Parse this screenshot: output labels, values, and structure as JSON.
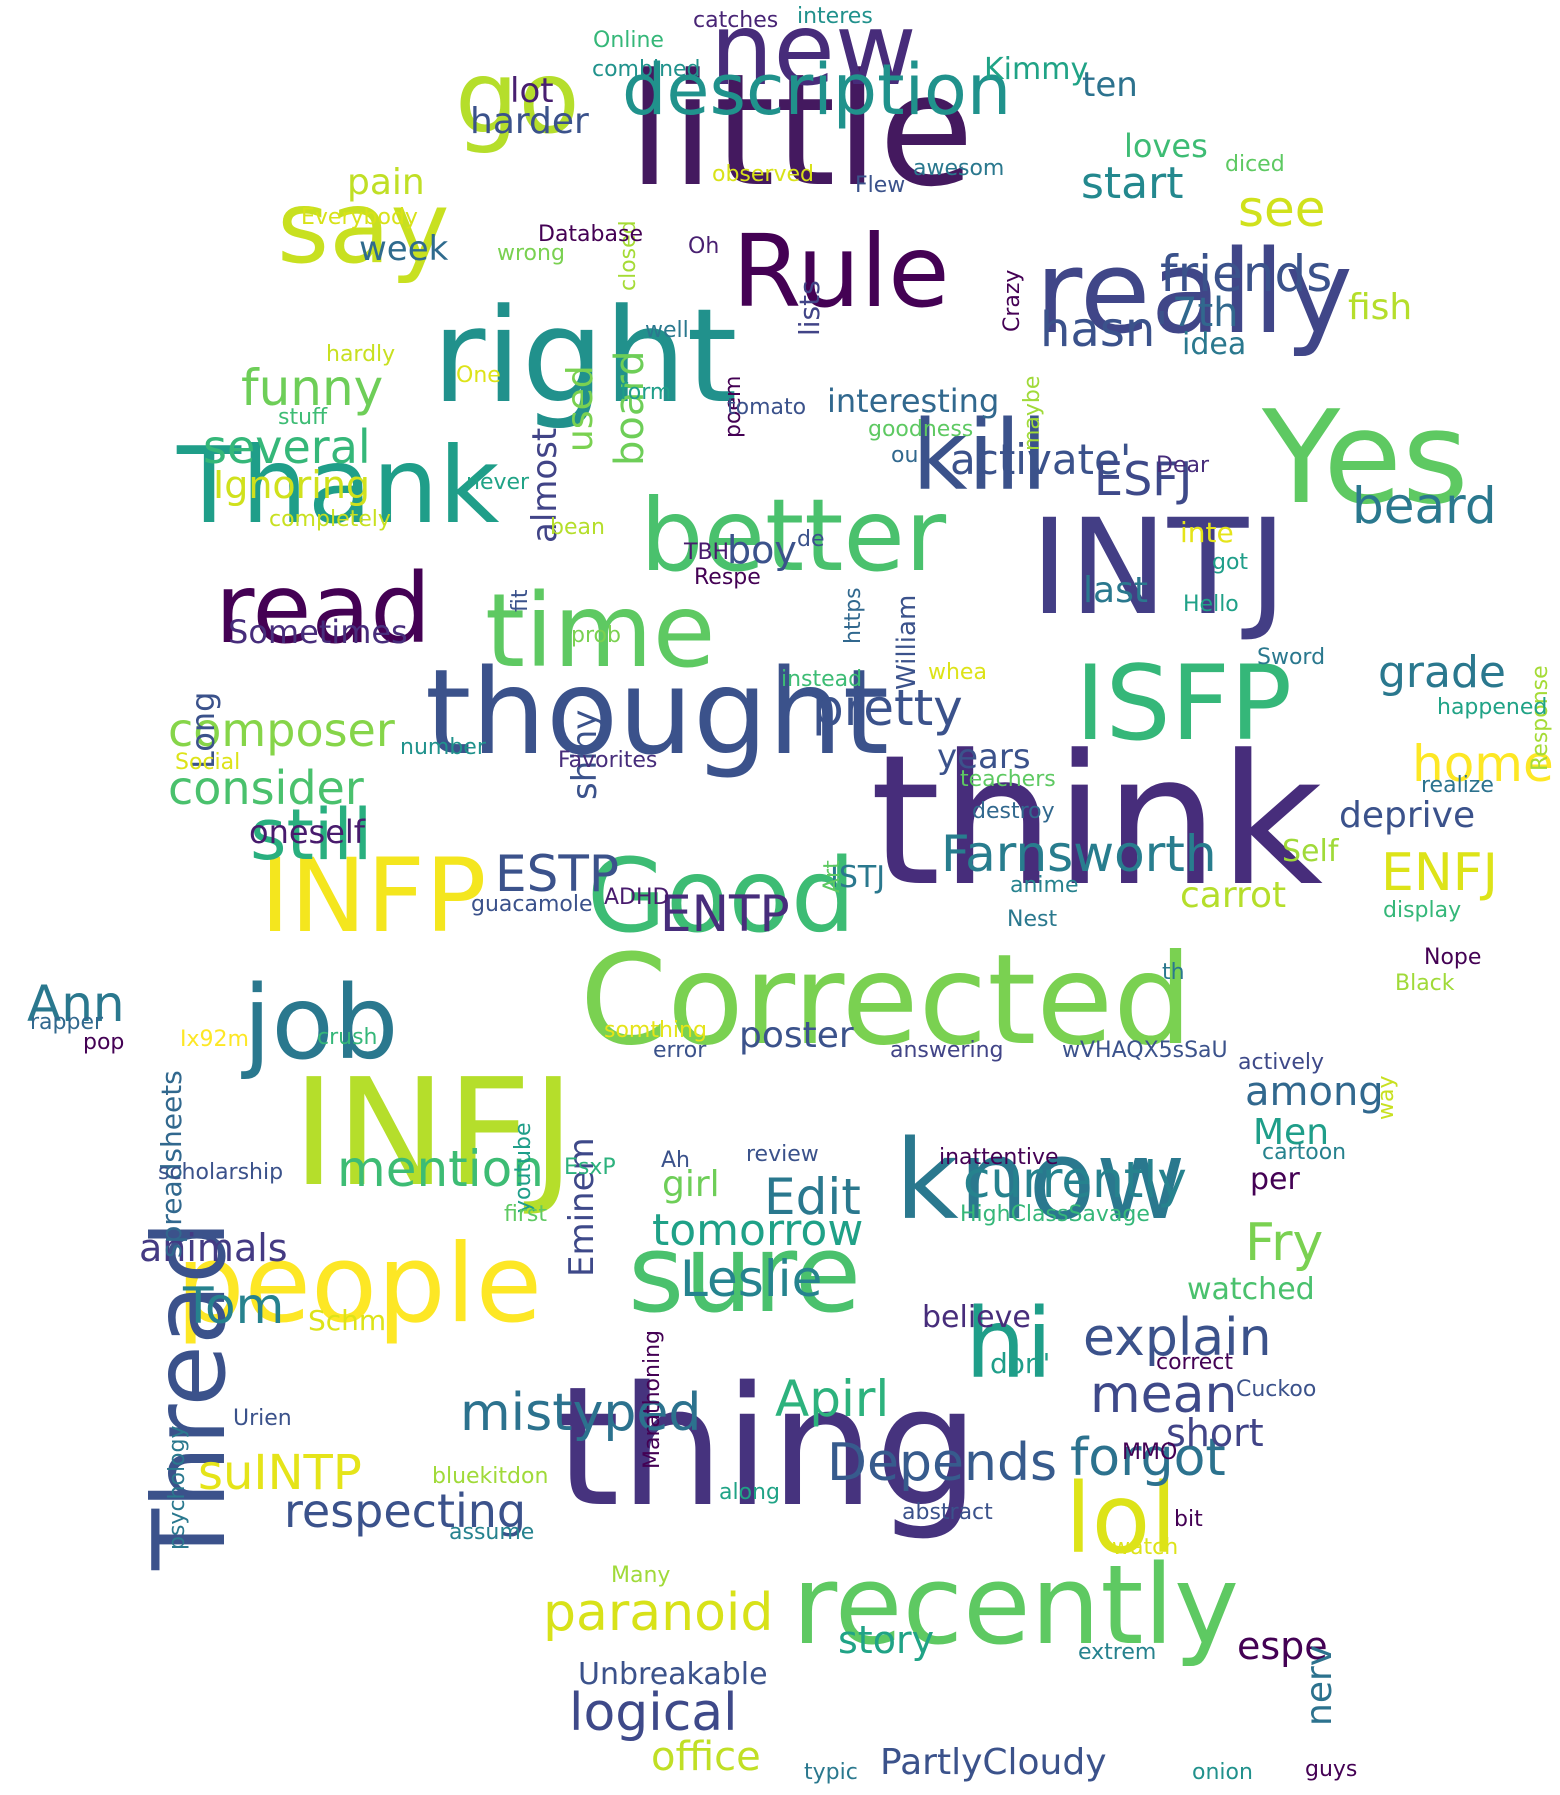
{
  "words": [
    {
      "text": "think",
      "color": "#472d7b"
    },
    {
      "text": "thing",
      "color": "#46337e"
    },
    {
      "text": "little",
      "color": "#44195f"
    },
    {
      "text": "INFJ",
      "color": "#b5de2b"
    },
    {
      "text": "INTJ",
      "color": "#433e85"
    },
    {
      "text": "Corrected",
      "color": "#7ad151"
    },
    {
      "text": "thought",
      "color": "#3b528b"
    },
    {
      "text": "right",
      "color": "#21918c"
    },
    {
      "text": "Yes",
      "color": "#5ec962"
    },
    {
      "text": "really",
      "color": "#404688"
    },
    {
      "text": "know",
      "color": "#2a788e"
    },
    {
      "text": "recently",
      "color": "#5ec962"
    },
    {
      "text": "people",
      "color": "#fde725"
    },
    {
      "text": "sure",
      "color": "#4ac16d"
    },
    {
      "text": "new",
      "color": "#472c7a"
    },
    {
      "text": "Thank",
      "color": "#1f9e89"
    },
    {
      "text": "Good",
      "color": "#3dbc74"
    },
    {
      "text": "job",
      "color": "#2a788e"
    },
    {
      "text": "INFP",
      "color": "#f4e61e"
    },
    {
      "text": "ISFP",
      "color": "#35b779"
    },
    {
      "text": "time",
      "color": "#5ec962"
    },
    {
      "text": "better",
      "color": "#4ac16d"
    },
    {
      "text": "Thread",
      "color": "#3b528b"
    },
    {
      "text": "Rule",
      "color": "#440154"
    },
    {
      "text": "go",
      "color": "#b5de2b"
    },
    {
      "text": "say",
      "color": "#c8e020"
    },
    {
      "text": "read",
      "color": "#440154"
    },
    {
      "text": "kill",
      "color": "#3b528b"
    },
    {
      "text": "lol",
      "color": "#dde318"
    },
    {
      "text": "hi",
      "color": "#1f9e89"
    },
    {
      "text": "description",
      "color": "#20928c"
    },
    {
      "text": "still",
      "color": "#29af7f"
    },
    {
      "text": "mistyped",
      "color": "#2c728e"
    },
    {
      "text": "paranoid",
      "color": "#d8e219"
    },
    {
      "text": "Depends",
      "color": "#375b8d"
    },
    {
      "text": "forgot",
      "color": "#2c728e"
    },
    {
      "text": "respecting",
      "color": "#3b528b"
    },
    {
      "text": "Apirl",
      "color": "#2db27d"
    },
    {
      "text": "logical",
      "color": "#3e4989"
    },
    {
      "text": "office",
      "color": "#c0df25"
    },
    {
      "text": "PartlyCloudy",
      "color": "#3b528b"
    },
    {
      "text": "suINTP",
      "color": "#e5e419"
    },
    {
      "text": "Leslie",
      "color": "#25838e"
    },
    {
      "text": "tomorrow",
      "color": "#1fa187"
    },
    {
      "text": "currently",
      "color": "#26828e"
    },
    {
      "text": "explain",
      "color": "#3b528b"
    },
    {
      "text": "mean",
      "color": "#3e4989"
    },
    {
      "text": "short",
      "color": "#414487"
    },
    {
      "text": "Fry",
      "color": "#7ad151"
    },
    {
      "text": "Edit",
      "color": "#2a788e"
    },
    {
      "text": "mention",
      "color": "#3dbc74"
    },
    {
      "text": "Tom",
      "color": "#26828e"
    },
    {
      "text": "animals",
      "color": "#443a83"
    },
    {
      "text": "pretty",
      "color": "#3b528b"
    },
    {
      "text": "Farnsworth",
      "color": "#287d8e"
    },
    {
      "text": "composer",
      "color": "#86d549"
    },
    {
      "text": "consider",
      "color": "#4ac16d"
    },
    {
      "text": "several",
      "color": "#35b779"
    },
    {
      "text": "funny",
      "color": "#6ece58"
    },
    {
      "text": "friends",
      "color": "#3b528b"
    },
    {
      "text": "start",
      "color": "#23888e"
    },
    {
      "text": "see",
      "color": "#d0e11c"
    },
    {
      "text": "beard",
      "color": "#2a788e"
    },
    {
      "text": "home",
      "color": "#fde725"
    },
    {
      "text": "grade",
      "color": "#2a788e"
    },
    {
      "text": "deprive",
      "color": "#3b528b"
    },
    {
      "text": "ENFJ",
      "color": "#dde318"
    },
    {
      "text": "hasn'",
      "color": "#3b528b"
    },
    {
      "text": "7th",
      "color": "#31688e"
    },
    {
      "text": "activate'",
      "color": "#3b528b"
    },
    {
      "text": "ESFJ",
      "color": "#3e4989"
    },
    {
      "text": "ESTP",
      "color": "#3b528b"
    },
    {
      "text": "ENTP",
      "color": "#472d7b"
    },
    {
      "text": "Ann",
      "color": "#2a788e"
    },
    {
      "text": "shiny",
      "color": "#3b528b"
    },
    {
      "text": "board",
      "color": "#6ece58"
    },
    {
      "text": "used",
      "color": "#7ad151"
    },
    {
      "text": "almost",
      "color": "#414487"
    },
    {
      "text": "Sometimes",
      "color": "#472d7b"
    },
    {
      "text": "oneself",
      "color": "#481b6d"
    },
    {
      "text": "years",
      "color": "#3b528b"
    },
    {
      "text": "interesting",
      "color": "#31688e"
    },
    {
      "text": "Ignoring",
      "color": "#d0e11c"
    },
    {
      "text": "week",
      "color": "#2f6b8e"
    },
    {
      "text": "pain",
      "color": "#c0df25"
    },
    {
      "text": "harder",
      "color": "#3b528b"
    },
    {
      "text": "lot",
      "color": "#481f70"
    },
    {
      "text": "Kimmy",
      "color": "#20a386"
    },
    {
      "text": "ten",
      "color": "#2c728e"
    },
    {
      "text": "loves",
      "color": "#3dbc74"
    },
    {
      "text": "fish",
      "color": "#b5de2b"
    },
    {
      "text": "idea",
      "color": "#2a788e"
    },
    {
      "text": "boy",
      "color": "#3b528b"
    },
    {
      "text": "last",
      "color": "#2a788e"
    },
    {
      "text": "among",
      "color": "#31688e"
    },
    {
      "text": "Men",
      "color": "#1f9e89"
    },
    {
      "text": "poster",
      "color": "#3b528b"
    },
    {
      "text": "Eminem",
      "color": "#3e4989"
    },
    {
      "text": "girl",
      "color": "#6ece58"
    },
    {
      "text": "carrot",
      "color": "#b5de2b"
    },
    {
      "text": "Self",
      "color": "#a0da39"
    },
    {
      "text": "ISTJ",
      "color": "#2a788e"
    },
    {
      "text": "spreadsheets",
      "color": "#31688e"
    },
    {
      "text": "Long",
      "color": "#3b528b"
    },
    {
      "text": "story",
      "color": "#20a386"
    },
    {
      "text": "espe",
      "color": "#440154"
    },
    {
      "text": "Unbreakable",
      "color": "#3b528b"
    },
    {
      "text": "nerv",
      "color": "#2c728e"
    },
    {
      "text": "believe",
      "color": "#472d7b"
    },
    {
      "text": "watched",
      "color": "#4ac16d"
    },
    {
      "text": "don'",
      "color": "#1f9e89"
    },
    {
      "text": "per",
      "color": "#440154"
    },
    {
      "text": "Schm",
      "color": "#dde318"
    },
    {
      "text": "inte",
      "color": "#e5e419"
    },
    {
      "text": "catches",
      "color": "#482475"
    },
    {
      "text": "interes",
      "color": "#21918c"
    },
    {
      "text": "Online",
      "color": "#35b779"
    },
    {
      "text": "combined",
      "color": "#20928c"
    },
    {
      "text": "observed",
      "color": "#d8e219"
    },
    {
      "text": "closed",
      "color": "#a5db36"
    },
    {
      "text": "Everybody",
      "color": "#d8e219"
    },
    {
      "text": "Database",
      "color": "#440154"
    },
    {
      "text": "wrong",
      "color": "#7ad151"
    },
    {
      "text": "Oh",
      "color": "#481f70"
    },
    {
      "text": "lists",
      "color": "#414487"
    },
    {
      "text": "Flew",
      "color": "#3b528b"
    },
    {
      "text": "awesom",
      "color": "#2a788e"
    },
    {
      "text": "diced",
      "color": "#5ec962"
    },
    {
      "text": "Crazy",
      "color": "#440154"
    },
    {
      "text": "maybe",
      "color": "#a0da39"
    },
    {
      "text": "well",
      "color": "#2a788e"
    },
    {
      "text": "poem",
      "color": "#440154"
    },
    {
      "text": "hardly",
      "color": "#c8e020"
    },
    {
      "text": "stuff",
      "color": "#3dbc74"
    },
    {
      "text": "One",
      "color": "#dde318"
    },
    {
      "text": "form",
      "color": "#1f9e89"
    },
    {
      "text": "tomato",
      "color": "#3b528b"
    },
    {
      "text": "goodness",
      "color": "#5ec962"
    },
    {
      "text": "ou",
      "color": "#31688e"
    },
    {
      "text": "William",
      "color": "#3b528b"
    },
    {
      "text": "Dear",
      "color": "#472d7b"
    },
    {
      "text": "never",
      "color": "#20a386"
    },
    {
      "text": "completely",
      "color": "#c8e020"
    },
    {
      "text": "bean",
      "color": "#b5de2b"
    },
    {
      "text": "TBH",
      "color": "#481b6d"
    },
    {
      "text": "de",
      "color": "#3b528b"
    },
    {
      "text": "https",
      "color": "#31688e"
    },
    {
      "text": "Respe",
      "color": "#440154"
    },
    {
      "text": "fit",
      "color": "#3b528b"
    },
    {
      "text": "got",
      "color": "#1f9e89"
    },
    {
      "text": "Hello",
      "color": "#1fa187"
    },
    {
      "text": "Response",
      "color": "#a5db36"
    },
    {
      "text": "prob",
      "color": "#7ad151"
    },
    {
      "text": "whea",
      "color": "#dde318"
    },
    {
      "text": "instead",
      "color": "#3dbc74"
    },
    {
      "text": "Sword",
      "color": "#2a788e"
    },
    {
      "text": "happened",
      "color": "#20a386"
    },
    {
      "text": "number",
      "color": "#20928c"
    },
    {
      "text": "Social",
      "color": "#dde318"
    },
    {
      "text": "Favorites",
      "color": "#472d7b"
    },
    {
      "text": "teachers",
      "color": "#5ec962"
    },
    {
      "text": "realize",
      "color": "#2c728e"
    },
    {
      "text": "destroy",
      "color": "#31688e"
    },
    {
      "text": "Art",
      "color": "#5ec962"
    },
    {
      "text": "anime",
      "color": "#26828e"
    },
    {
      "text": "Nest",
      "color": "#2a788e"
    },
    {
      "text": "display",
      "color": "#35b779"
    },
    {
      "text": "guacamole",
      "color": "#3b528b"
    },
    {
      "text": "ADHD",
      "color": "#481b6d"
    },
    {
      "text": "Nope",
      "color": "#440154"
    },
    {
      "text": "th",
      "color": "#2a788e"
    },
    {
      "text": "Black",
      "color": "#a0da39"
    },
    {
      "text": "rapper",
      "color": "#31688e"
    },
    {
      "text": "pop",
      "color": "#440154"
    },
    {
      "text": "Ix92m",
      "color": "#fde725"
    },
    {
      "text": "crush",
      "color": "#35b779"
    },
    {
      "text": "somthing",
      "color": "#e5e419"
    },
    {
      "text": "error",
      "color": "#3b528b"
    },
    {
      "text": "youtube",
      "color": "#1f9e89"
    },
    {
      "text": "answering",
      "color": "#414487"
    },
    {
      "text": "wVHAQX5sSaU",
      "color": "#3b528b"
    },
    {
      "text": "actively",
      "color": "#3e4989"
    },
    {
      "text": "way",
      "color": "#c8e020"
    },
    {
      "text": "review",
      "color": "#3b528b"
    },
    {
      "text": "inattentive",
      "color": "#440154"
    },
    {
      "text": "cartoon",
      "color": "#26828e"
    },
    {
      "text": "scholarship",
      "color": "#3b528b"
    },
    {
      "text": "EsxP",
      "color": "#2db27d"
    },
    {
      "text": "Ah",
      "color": "#3b528b"
    },
    {
      "text": "HighClassSavage",
      "color": "#35b779"
    },
    {
      "text": "first",
      "color": "#5ec962"
    },
    {
      "text": "Marathoning",
      "color": "#440154"
    },
    {
      "text": "psychology",
      "color": "#2a788e"
    },
    {
      "text": "Urien",
      "color": "#3b528b"
    },
    {
      "text": "correct",
      "color": "#440154"
    },
    {
      "text": "Cuckoo",
      "color": "#3b528b"
    },
    {
      "text": "MMO",
      "color": "#440154"
    },
    {
      "text": "bluekitdon",
      "color": "#a0da39"
    },
    {
      "text": "along",
      "color": "#20a386"
    },
    {
      "text": "abstract",
      "color": "#3b528b"
    },
    {
      "text": "assume",
      "color": "#26828e"
    },
    {
      "text": "bit",
      "color": "#440154"
    },
    {
      "text": "watch",
      "color": "#dde318"
    },
    {
      "text": "Many",
      "color": "#a0da39"
    },
    {
      "text": "extrem",
      "color": "#26828e"
    },
    {
      "text": "typic",
      "color": "#2a788e"
    },
    {
      "text": "onion",
      "color": "#21918c"
    },
    {
      "text": "guys",
      "color": "#440154"
    }
  ]
}
